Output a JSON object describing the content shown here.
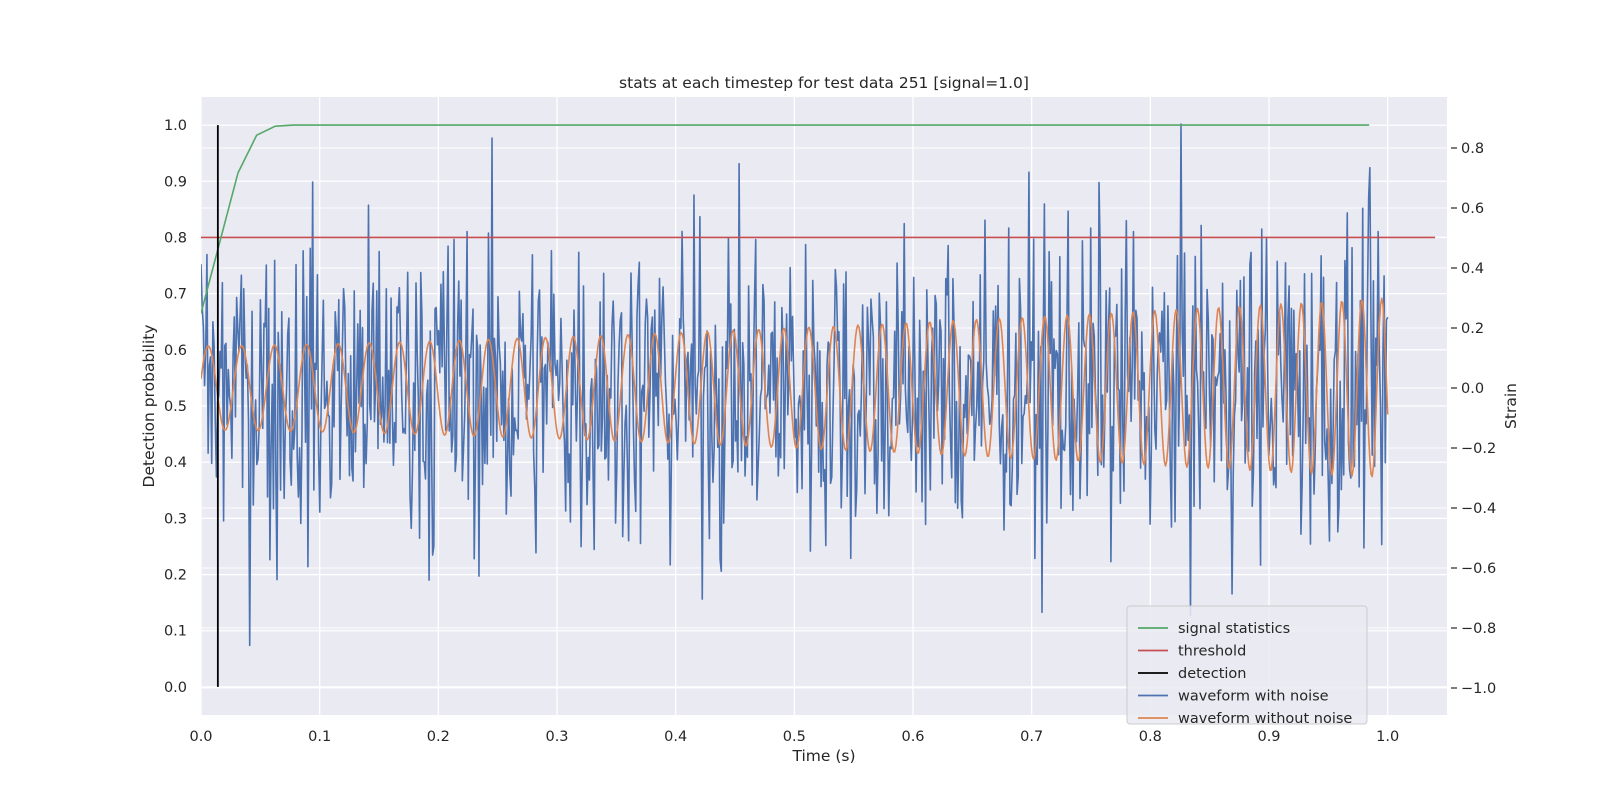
{
  "chart_data": {
    "type": "line",
    "title": "stats at each timestep for test data 251 [signal=1.0]",
    "xlabel": "Time (s)",
    "ylabel": "Detection probability",
    "y2label": "Strain",
    "xlim": [
      0.0,
      1.05
    ],
    "ylim": [
      -0.05,
      1.05
    ],
    "y2lim": [
      -1.09,
      0.97
    ],
    "xticks": [
      "0.0",
      "0.1",
      "0.2",
      "0.3",
      "0.4",
      "0.5",
      "0.6",
      "0.7",
      "0.8",
      "0.9",
      "1.0"
    ],
    "yticks": [
      "0.0",
      "0.1",
      "0.2",
      "0.3",
      "0.4",
      "0.5",
      "0.6",
      "0.7",
      "0.8",
      "0.9",
      "1.0"
    ],
    "y2ticks": [
      "−1.0",
      "−0.8",
      "−0.6",
      "−0.4",
      "−0.2",
      "0.0",
      "0.2",
      "0.4",
      "0.6",
      "0.8"
    ],
    "grid": true,
    "legend_position": "lower right",
    "series": [
      {
        "name": "signal statistics",
        "color": "#55a868",
        "axis": "left",
        "x": [
          0.0,
          0.0156,
          0.0312,
          0.0469,
          0.0625,
          0.0781,
          0.0938,
          0.25,
          0.5,
          0.75,
          0.9844
        ],
        "y": [
          0.665,
          0.79,
          0.915,
          0.982,
          0.998,
          1.0,
          1.0,
          1.0,
          1.0,
          1.0,
          1.0
        ]
      },
      {
        "name": "threshold",
        "color": "#c44e52",
        "axis": "left",
        "x": [
          0.0,
          1.04
        ],
        "y": [
          0.8,
          0.8
        ]
      },
      {
        "name": "detection",
        "color": "#000000",
        "axis": "left",
        "x": [
          0.0142,
          0.0142
        ],
        "y": [
          0.0,
          1.0
        ]
      },
      {
        "name": "waveform with noise",
        "color": "#4c72b0",
        "axis": "right",
        "kind": "noise",
        "points": 1000,
        "x_range": [
          0.0,
          1.0
        ],
        "range": [
          -1.0,
          0.88
        ],
        "std": 0.27
      },
      {
        "name": "waveform without noise",
        "color": "#dd8452",
        "axis": "right",
        "kind": "chirp",
        "points": 1000,
        "x_range": [
          0.0,
          1.0
        ],
        "freq_start_hz": 35,
        "freq_end_hz": 60,
        "amp_start": 0.14,
        "amp_end": 0.3
      }
    ]
  }
}
